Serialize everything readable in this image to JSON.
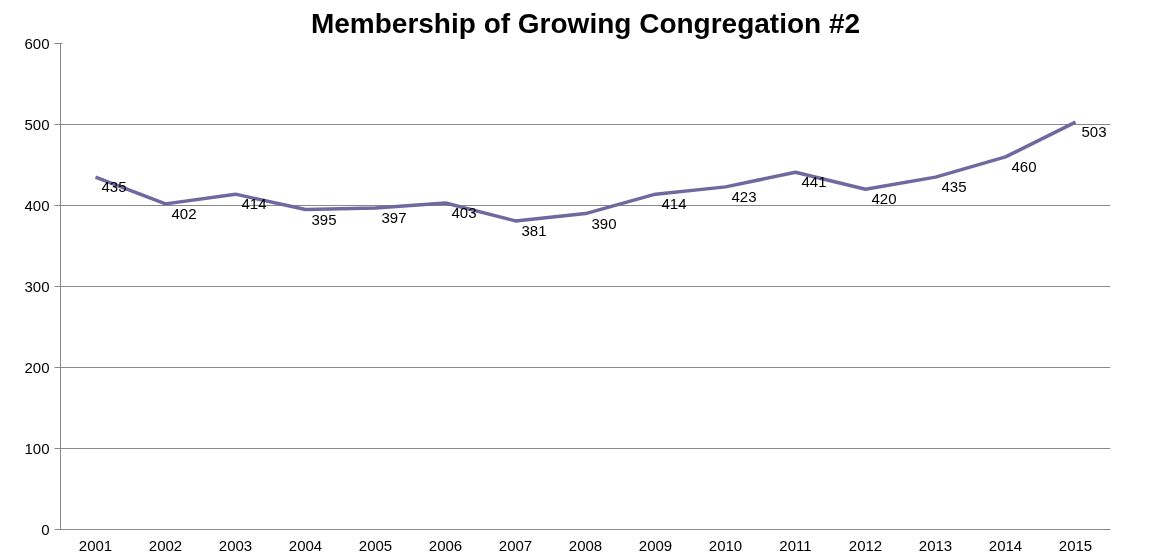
{
  "chart_data": {
    "type": "line",
    "title": "Membership of Growing Congregation #2",
    "categories": [
      "2001",
      "2002",
      "2003",
      "2004",
      "2005",
      "2006",
      "2007",
      "2008",
      "2009",
      "2010",
      "2011",
      "2012",
      "2013",
      "2014",
      "2015"
    ],
    "series": [
      {
        "color": "#6e6aa0",
        "values": [
          435,
          402,
          414,
          395,
          397,
          403,
          381,
          390,
          414,
          423,
          441,
          420,
          435,
          460,
          503
        ]
      }
    ],
    "ylim": [
      0,
      600
    ],
    "yticks": [
      0,
      100,
      200,
      300,
      400,
      500,
      600
    ],
    "grid": "y",
    "data_labels": true,
    "marker": "none",
    "line_style": "solid"
  }
}
